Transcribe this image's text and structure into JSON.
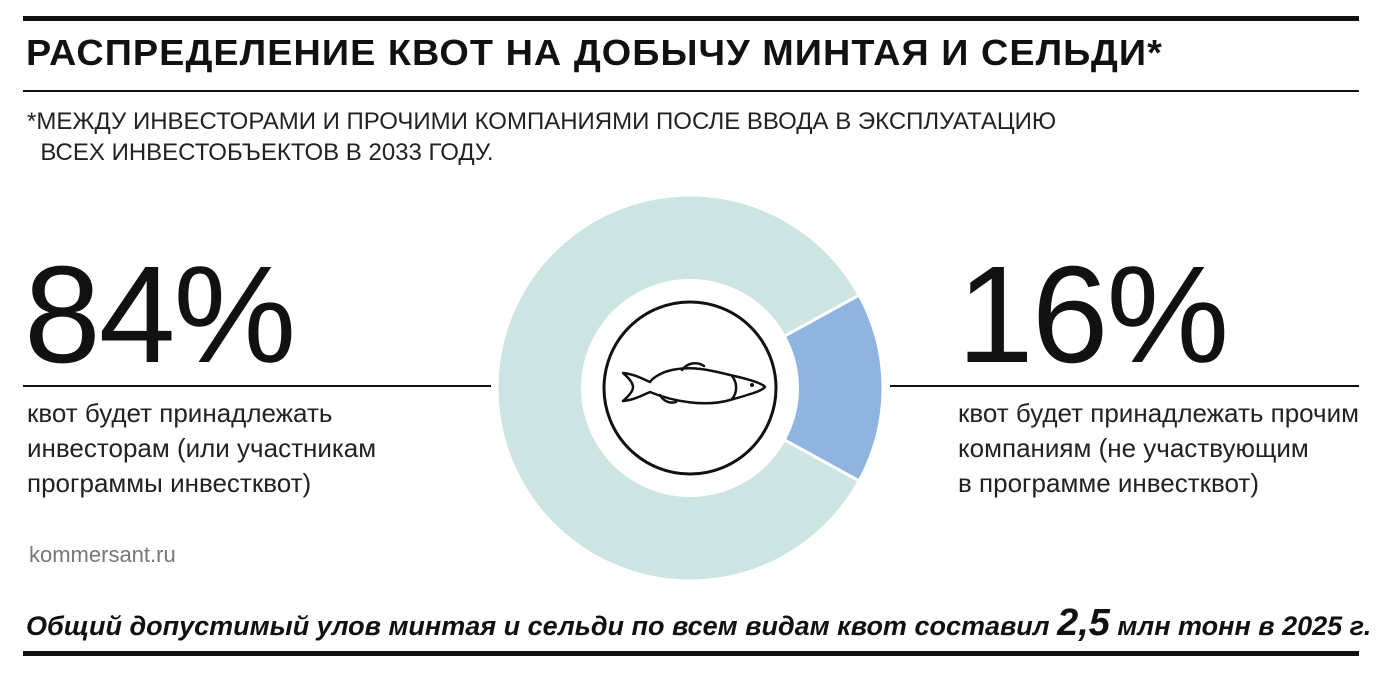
{
  "header": {
    "title": "РАСПРЕДЕЛЕНИЕ КВОТ НА ДОБЫЧУ МИНТАЯ И СЕЛЬДИ*",
    "subtitle": "*МЕЖДУ ИНВЕСТОРАМИ И ПРОЧИМИ КОМПАНИЯМИ ПОСЛЕ ВВОДА В ЭКСПЛУАТАЦИЮ\n  ВСЕХ ИНВЕСТОБЪЕКТОВ В 2033 ГОДУ."
  },
  "left": {
    "value_label": "84%",
    "description": "квот будет принадлежать\nинвесторам (или участникам\nпрограммы инвестквот)"
  },
  "right": {
    "value_label": "16%",
    "description": "квот будет принадлежать прочим\nкомпаниям (не участвующим\nв программе инвестквот)"
  },
  "source": "kommersant.ru",
  "footer": {
    "text_before": "Общий допустимый улов минтая и сельди по всем видам квот составил ",
    "highlight": "2,5",
    "text_after": " млн тонн в 2025 г."
  },
  "center_icon": "fish-icon",
  "colors": {
    "investors": "#cce4e2",
    "others": "#8fb4df",
    "text": "#111111"
  },
  "chart_data": {
    "type": "pie",
    "donut": true,
    "categories": [
      "инвесторы",
      "прочие компании"
    ],
    "values": [
      84,
      16
    ],
    "colors": [
      "#cce4e2",
      "#8fb4df"
    ]
  }
}
